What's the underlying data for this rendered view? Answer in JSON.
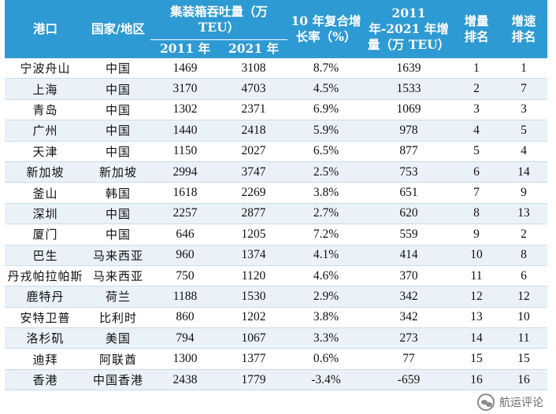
{
  "header": {
    "port": "港口",
    "country": "国家/地区",
    "throughput_group": "集装箱吞吐量（万 TEU）",
    "year_2011": "2011 年",
    "year_2021": "2021 年",
    "cagr": "10 年复合增长率（%）",
    "increase": "2011 年-2021 年增量（万 TEU）",
    "increase_rank": "增量排名",
    "growth_rank": "增速排名"
  },
  "rows": [
    {
      "port": "宁波舟山",
      "country": "中国",
      "y2011": "1469",
      "y2021": "3108",
      "cagr": "8.7%",
      "increase": "1639",
      "inc_rank": "1",
      "growth_rank": "1"
    },
    {
      "port": "上海",
      "country": "中国",
      "y2011": "3170",
      "y2021": "4703",
      "cagr": "4.5%",
      "increase": "1533",
      "inc_rank": "2",
      "growth_rank": "7"
    },
    {
      "port": "青岛",
      "country": "中国",
      "y2011": "1302",
      "y2021": "2371",
      "cagr": "6.9%",
      "increase": "1069",
      "inc_rank": "3",
      "growth_rank": "3"
    },
    {
      "port": "广州",
      "country": "中国",
      "y2011": "1440",
      "y2021": "2418",
      "cagr": "5.9%",
      "increase": "978",
      "inc_rank": "4",
      "growth_rank": "5"
    },
    {
      "port": "天津",
      "country": "中国",
      "y2011": "1150",
      "y2021": "2027",
      "cagr": "6.5%",
      "increase": "877",
      "inc_rank": "5",
      "growth_rank": "4"
    },
    {
      "port": "新加坡",
      "country": "新加坡",
      "y2011": "2994",
      "y2021": "3747",
      "cagr": "2.5%",
      "increase": "753",
      "inc_rank": "6",
      "growth_rank": "14"
    },
    {
      "port": "釜山",
      "country": "韩国",
      "y2011": "1618",
      "y2021": "2269",
      "cagr": "3.8%",
      "increase": "651",
      "inc_rank": "7",
      "growth_rank": "9"
    },
    {
      "port": "深圳",
      "country": "中国",
      "y2011": "2257",
      "y2021": "2877",
      "cagr": "2.7%",
      "increase": "620",
      "inc_rank": "8",
      "growth_rank": "13"
    },
    {
      "port": "厦门",
      "country": "中国",
      "y2011": "646",
      "y2021": "1205",
      "cagr": "7.2%",
      "increase": "559",
      "inc_rank": "9",
      "growth_rank": "2"
    },
    {
      "port": "巴生",
      "country": "马来西亚",
      "y2011": "960",
      "y2021": "1374",
      "cagr": "4.1%",
      "increase": "414",
      "inc_rank": "10",
      "growth_rank": "8"
    },
    {
      "port": "丹戎帕拉帕斯",
      "country": "马来西亚",
      "y2011": "750",
      "y2021": "1120",
      "cagr": "4.6%",
      "increase": "370",
      "inc_rank": "11",
      "growth_rank": "6"
    },
    {
      "port": "鹿特丹",
      "country": "荷兰",
      "y2011": "1188",
      "y2021": "1530",
      "cagr": "2.9%",
      "increase": "342",
      "inc_rank": "12",
      "growth_rank": "12"
    },
    {
      "port": "安特卫普",
      "country": "比利时",
      "y2011": "860",
      "y2021": "1202",
      "cagr": "3.8%",
      "increase": "342",
      "inc_rank": "13",
      "growth_rank": "10"
    },
    {
      "port": "洛杉矶",
      "country": "美国",
      "y2011": "794",
      "y2021": "1067",
      "cagr": "3.3%",
      "increase": "273",
      "inc_rank": "14",
      "growth_rank": "11"
    },
    {
      "port": "迪拜",
      "country": "阿联酋",
      "y2011": "1300",
      "y2021": "1377",
      "cagr": "0.6%",
      "increase": "77",
      "inc_rank": "15",
      "growth_rank": "15"
    },
    {
      "port": "香港",
      "country": "中国香港",
      "y2011": "2438",
      "y2021": "1779",
      "cagr": "-3.4%",
      "increase": "-659",
      "inc_rank": "16",
      "growth_rank": "16"
    }
  ],
  "watermark": {
    "icon": "wechat-icon",
    "text": "航运评论"
  },
  "colors": {
    "header_bg": "#2e9ad3",
    "header_text": "#ffffff",
    "stripe": "#eaf2f8"
  }
}
